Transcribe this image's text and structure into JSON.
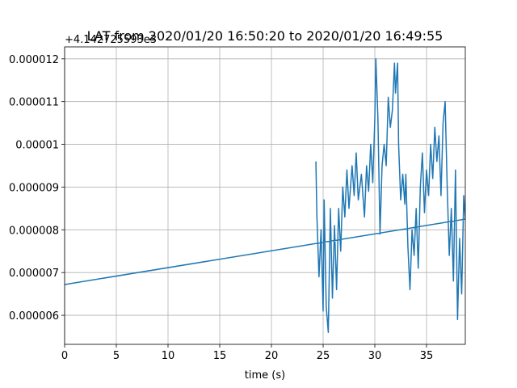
{
  "chart_data": {
    "type": "line",
    "title": "LAT from 2020/01/20 16:50:20 to 2020/01/20 16:49:55",
    "offset_text": "+4.142725593e3",
    "x_label": "time (s)",
    "x": [
      24.3,
      24.4,
      24.6,
      24.8,
      25.0,
      25.1,
      25.3,
      25.5,
      25.7,
      25.9,
      26.1,
      26.3,
      26.5,
      26.7,
      26.9,
      27.1,
      27.3,
      27.5,
      27.8,
      28.0,
      28.2,
      28.4,
      28.7,
      29.0,
      29.2,
      29.4,
      29.6,
      29.8,
      30.0,
      30.1,
      30.3,
      30.5,
      30.7,
      30.9,
      31.1,
      31.3,
      31.5,
      31.7,
      31.9,
      32.0,
      32.2,
      32.3,
      32.5,
      32.7,
      32.9,
      33.0,
      33.2,
      33.4,
      33.6,
      33.8,
      34.0,
      34.2,
      34.4,
      34.6,
      34.8,
      35.0,
      35.2,
      35.4,
      35.6,
      35.8,
      36.0,
      36.2,
      36.4,
      36.6,
      36.8,
      37.0,
      37.2,
      37.4,
      37.6,
      37.8,
      38.0,
      38.2,
      38.4,
      38.6,
      38.75,
      0
    ],
    "series": [
      {
        "color": "#1f77b4",
        "values": [
          9.6e-06,
          8.3e-06,
          6.9e-06,
          8e-06,
          6.1e-06,
          8.7e-06,
          6.2e-06,
          5.6e-06,
          8.5e-06,
          6.4e-06,
          8.1e-06,
          6.6e-06,
          8.5e-06,
          7.5e-06,
          9e-06,
          8.3e-06,
          9.4e-06,
          8.5e-06,
          9.5e-06,
          8.8e-06,
          9.8e-06,
          8.7e-06,
          9.3e-06,
          8.3e-06,
          9.5e-06,
          8.9e-06,
          1e-05,
          9.1e-06,
          1.06e-05,
          1.2e-05,
          1.06e-05,
          7.9e-06,
          9.5e-06,
          1e-05,
          9.5e-06,
          1.11e-05,
          1.04e-05,
          1.08e-05,
          1.19e-05,
          1.12e-05,
          1.19e-05,
          1e-05,
          8.7e-06,
          9.3e-06,
          8.6e-06,
          9.3e-06,
          7.6e-06,
          6.6e-06,
          8e-06,
          7.4e-06,
          8.5e-06,
          7.1e-06,
          9e-06,
          9.8e-06,
          8.4e-06,
          9.4e-06,
          8.8e-06,
          1e-05,
          9.2e-06,
          1.04e-05,
          9.6e-06,
          1.02e-05,
          8.8e-06,
          1.05e-05,
          1.1e-05,
          9e-06,
          7.4e-06,
          8.5e-06,
          6.8e-06,
          9.4e-06,
          5.9e-06,
          7.8e-06,
          6.5e-06,
          8.8e-06,
          8.25e-06,
          6.72e-06
        ]
      }
    ],
    "xlim": [
      0,
      38.75
    ],
    "xticks": [
      0,
      5,
      10,
      15,
      20,
      25,
      30,
      35
    ],
    "ylim": [
      5.32e-06,
      1.228e-05
    ],
    "yticks": [
      6e-06,
      7e-06,
      8e-06,
      9e-06,
      1e-05,
      1.1e-05,
      1.2e-05
    ],
    "grid": true
  }
}
